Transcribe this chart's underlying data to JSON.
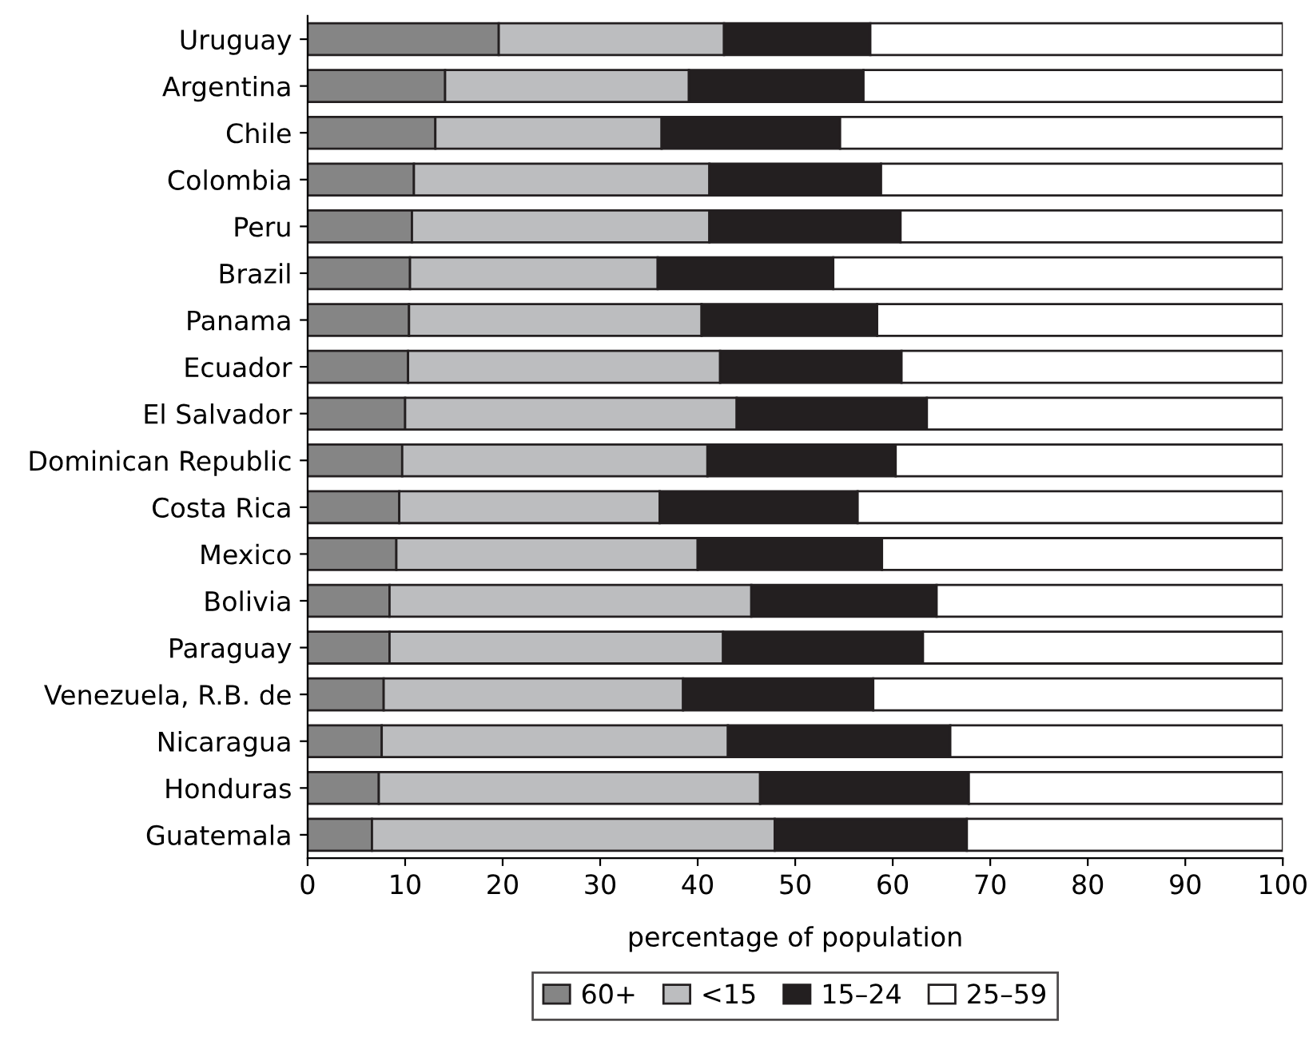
{
  "chart_data": {
    "type": "bar",
    "orientation": "horizontal",
    "stacked": true,
    "xlabel": "percentage of population",
    "categories": [
      "Uruguay",
      "Argentina",
      "Chile",
      "Colombia",
      "Peru",
      "Brazil",
      "Panama",
      "Ecuador",
      "El Salvador",
      "Dominican Republic",
      "Costa Rica",
      "Mexico",
      "Bolivia",
      "Paraguay",
      "Venezuela, R.B. de",
      "Nicaragua",
      "Honduras",
      "Guatemala"
    ],
    "series": [
      {
        "name": "60+",
        "color": "#858585",
        "values": [
          19.6,
          14.1,
          13.1,
          10.9,
          10.7,
          10.5,
          10.4,
          10.3,
          10.0,
          9.7,
          9.4,
          9.1,
          8.4,
          8.4,
          7.8,
          7.6,
          7.3,
          6.6
        ]
      },
      {
        "name": "<15",
        "color": "#bcbdbf",
        "values": [
          23.1,
          25.0,
          23.2,
          30.3,
          30.5,
          25.4,
          30.0,
          32.0,
          34.0,
          31.3,
          26.7,
          30.9,
          37.1,
          34.2,
          30.7,
          35.5,
          39.1,
          41.3
        ]
      },
      {
        "name": "15–24",
        "color": "#231f20",
        "values": [
          15.0,
          17.9,
          18.3,
          17.6,
          19.6,
          18.0,
          18.0,
          18.6,
          19.5,
          19.3,
          20.3,
          18.9,
          19.0,
          20.5,
          19.5,
          22.8,
          21.4,
          19.7
        ]
      },
      {
        "name": "25–59",
        "color": "#ffffff",
        "values": [
          42.3,
          43.0,
          45.4,
          41.2,
          39.2,
          46.1,
          41.6,
          39.1,
          36.5,
          39.7,
          43.6,
          41.1,
          35.5,
          36.9,
          42.0,
          34.1,
          32.2,
          32.4
        ]
      }
    ],
    "xlim": [
      0,
      100
    ],
    "xticks": [
      0,
      10,
      20,
      30,
      40,
      50,
      60,
      70,
      80,
      90,
      100
    ],
    "grid": false,
    "legend": "bottom"
  }
}
